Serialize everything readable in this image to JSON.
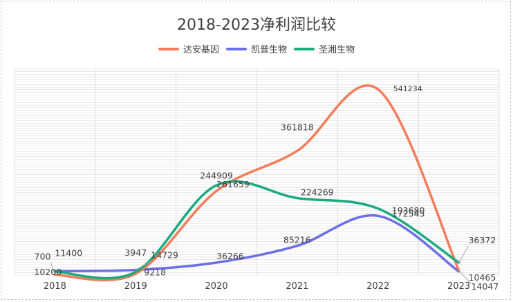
{
  "chart_data": {
    "type": "line",
    "title": "2018-2023净利润比较",
    "xlabel": "",
    "ylabel": "",
    "categories": [
      "2018",
      "2019",
      "2020",
      "2021",
      "2022",
      "2023"
    ],
    "ylim": [
      0,
      600000
    ],
    "grid": true,
    "legend_position": "top",
    "smooth": true,
    "series": [
      {
        "name": "达安基因",
        "color": "#f47c5a",
        "values": [
          700,
          3947,
          244909,
          361818,
          541234,
          14047
        ],
        "labels": [
          "700",
          "3947",
          "244909",
          "361818",
          "541234",
          "14047"
        ]
      },
      {
        "name": "凯普生物",
        "color": "#6a6ee8",
        "values": [
          11400,
          14729,
          36266,
          85216,
          172545,
          10465
        ],
        "labels": [
          "11400",
          "14729",
          "36266",
          "85216",
          "172545",
          "10465"
        ]
      },
      {
        "name": "圣湘生物",
        "color": "#1aaa7e",
        "values": [
          10200,
          9218,
          261659,
          224269,
          193680,
          36372
        ],
        "labels": [
          "10200",
          "9218",
          "261659",
          "224269",
          "193680",
          "36372"
        ]
      }
    ]
  }
}
